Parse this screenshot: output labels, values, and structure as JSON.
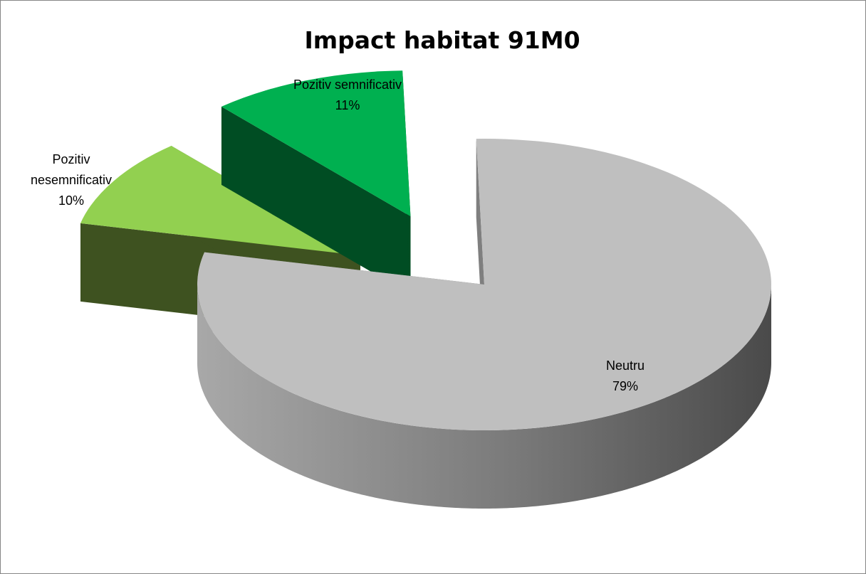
{
  "chart_data": {
    "type": "pie",
    "title": "Impact habitat 91M0",
    "categories": [
      "Neutru",
      "Pozitiv nesemnificativ",
      "Pozitiv semnificativ"
    ],
    "values": [
      79,
      10,
      11
    ],
    "unit": "%",
    "exploded": [
      "Pozitiv nesemnificativ",
      "Pozitiv semnificativ"
    ],
    "style": "3d",
    "legend": "none",
    "colors": {
      "Neutru": "#bfbfbf",
      "Pozitiv nesemnificativ": "#92d050",
      "Pozitiv semnificativ": "#00b050"
    },
    "side_colors": {
      "Neutru": "#7f7f7f",
      "Pozitiv nesemnificativ": "#3e5220",
      "Pozitiv semnificativ": "#004d23"
    },
    "labels": [
      {
        "lines": [
          "Neutru",
          "79%"
        ]
      },
      {
        "lines": [
          "Pozitiv",
          "nesemnificativ",
          "10%"
        ]
      },
      {
        "lines": [
          "Pozitiv semnificativ",
          "11%"
        ]
      }
    ]
  }
}
